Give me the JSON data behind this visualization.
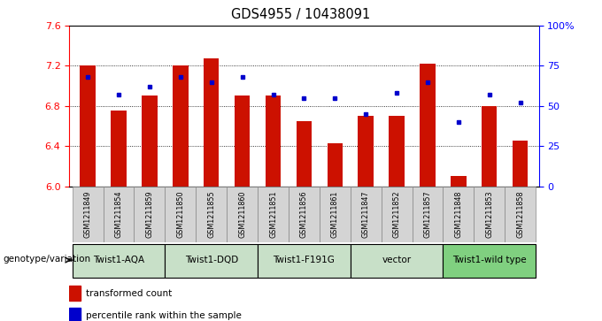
{
  "title": "GDS4955 / 10438091",
  "samples": [
    "GSM1211849",
    "GSM1211854",
    "GSM1211859",
    "GSM1211850",
    "GSM1211855",
    "GSM1211860",
    "GSM1211851",
    "GSM1211856",
    "GSM1211861",
    "GSM1211847",
    "GSM1211852",
    "GSM1211857",
    "GSM1211848",
    "GSM1211853",
    "GSM1211858"
  ],
  "bar_values": [
    7.2,
    6.75,
    6.9,
    7.2,
    7.27,
    6.9,
    6.9,
    6.65,
    6.43,
    6.7,
    6.7,
    7.22,
    6.1,
    6.8,
    6.45
  ],
  "percentile_values": [
    68,
    57,
    62,
    68,
    65,
    68,
    57,
    55,
    55,
    45,
    58,
    65,
    40,
    57,
    52
  ],
  "groups": [
    {
      "label": "Twist1-AQA",
      "start": 0,
      "end": 3
    },
    {
      "label": "Twist1-DQD",
      "start": 3,
      "end": 6
    },
    {
      "label": "Twist1-F191G",
      "start": 6,
      "end": 9
    },
    {
      "label": "vector",
      "start": 9,
      "end": 12
    },
    {
      "label": "Twist1-wild type",
      "start": 12,
      "end": 15
    }
  ],
  "group_colors": [
    "#c8e0c8",
    "#c8e0c8",
    "#c8e0c8",
    "#c8e0c8",
    "#80d080"
  ],
  "ylim_left": [
    6.0,
    7.6
  ],
  "ylim_right": [
    0,
    100
  ],
  "yticks_left": [
    6.0,
    6.4,
    6.8,
    7.2,
    7.6
  ],
  "yticks_right": [
    0,
    25,
    50,
    75,
    100
  ],
  "bar_color": "#cc1100",
  "dot_color": "#0000cc",
  "bar_width": 0.5,
  "legend_bar": "transformed count",
  "legend_dot": "percentile rank within the sample",
  "genotype_label": "genotype/variation"
}
